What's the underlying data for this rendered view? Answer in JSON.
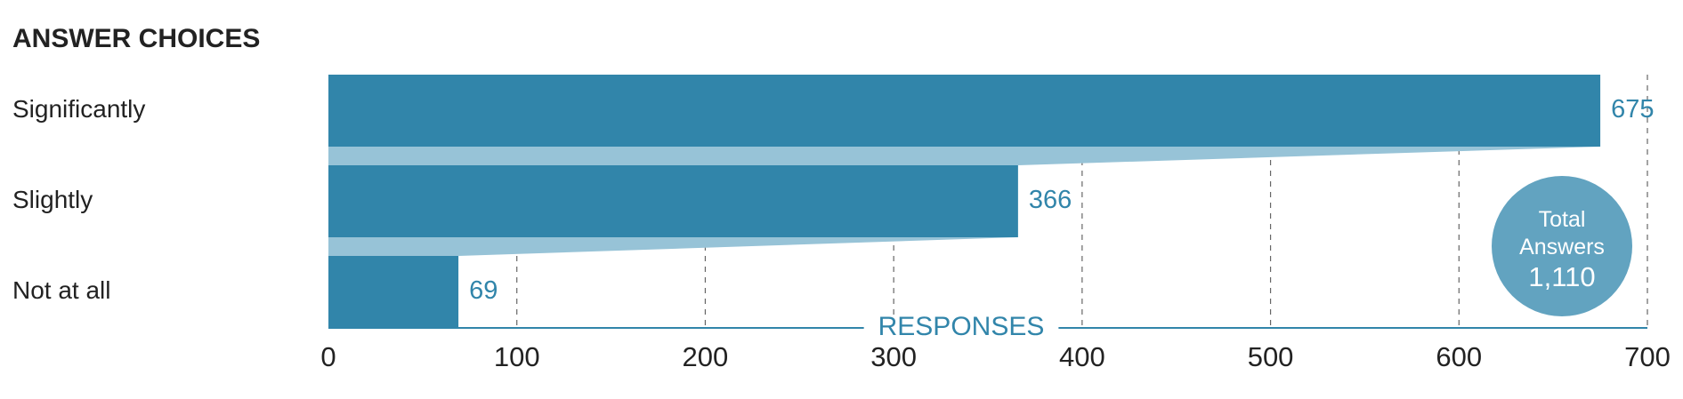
{
  "chart_data": {
    "type": "funnel_bar",
    "title": "ANSWER CHOICES",
    "categories": [
      "Significantly",
      "Slightly",
      "Not at all"
    ],
    "values": [
      675,
      366,
      69
    ],
    "color": "#3185aa",
    "connector_color": "#97c3d7",
    "xlim": [
      0,
      700
    ],
    "xticks": [
      0,
      100,
      200,
      300,
      400,
      500,
      600,
      700
    ],
    "grid": true,
    "x_label": "RESPONSES",
    "total_title": "Total Answers",
    "total": {
      "value": 1110,
      "label": "1,110"
    },
    "total_color": "#62a3c0"
  }
}
